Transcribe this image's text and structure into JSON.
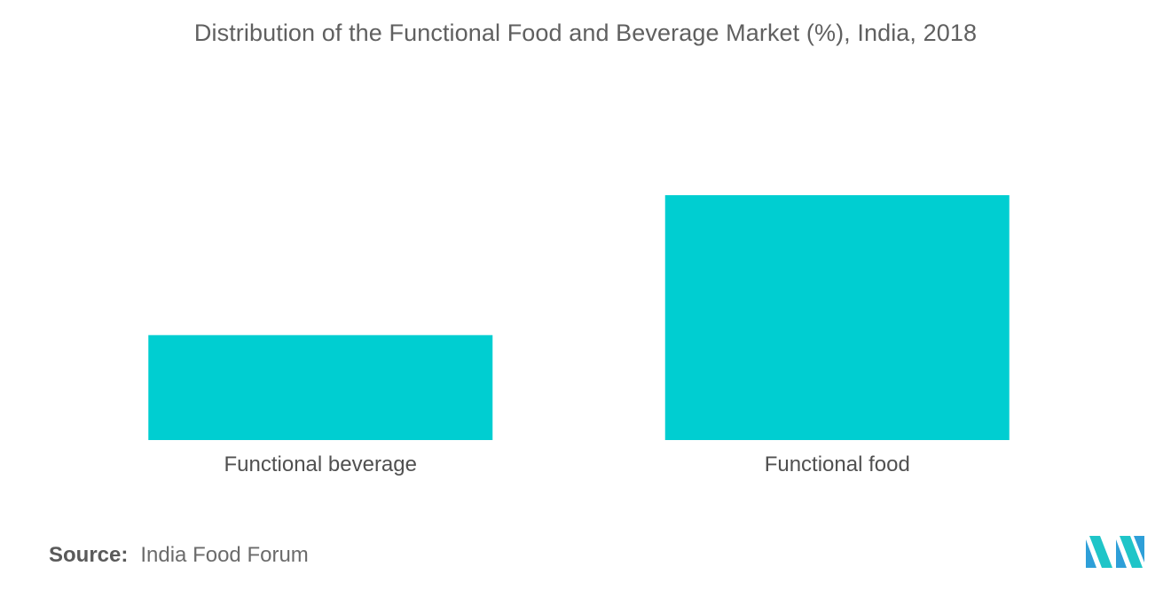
{
  "chart_data": {
    "type": "bar",
    "title": "Distribution of the Functional Food and Beverage Market (%), India, 2018",
    "xlabel": "",
    "ylabel": "",
    "categories": [
      "Functional beverage",
      "Functional food"
    ],
    "values": [
      30,
      70
    ],
    "ylim": [
      0,
      70
    ],
    "grid": false,
    "legend": "none",
    "bar_color": "#00CED1"
  },
  "source": {
    "label": "Source:",
    "text": "India Food Forum"
  },
  "logo": {
    "icon": "mordor-intelligence-logo",
    "colors": [
      "#2E9FD8",
      "#1FC5C8"
    ]
  }
}
